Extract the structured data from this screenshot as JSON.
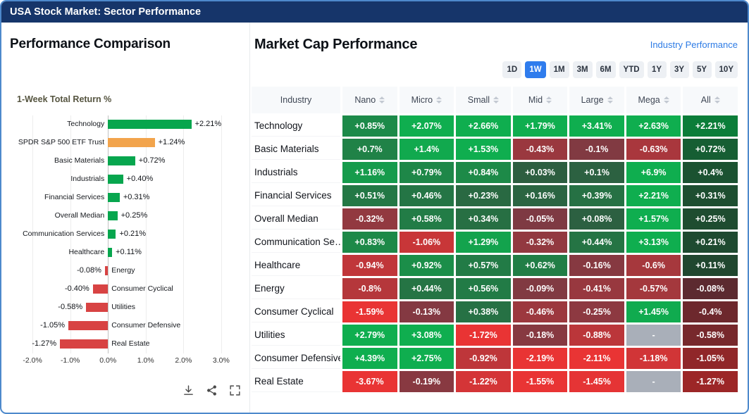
{
  "app": {
    "title": "USA Stock Market: Sector Performance"
  },
  "left_panel": {
    "title": "Performance Comparison",
    "toolbar_icons": [
      "download-icon",
      "share-icon",
      "fullscreen-icon"
    ]
  },
  "chart_data": {
    "type": "bar",
    "orientation": "horizontal",
    "title": "1-Week Total Return %",
    "categories": [
      "Technology",
      "SPDR S&P 500 ETF Trust",
      "Basic Materials",
      "Industrials",
      "Financial Services",
      "Overall Median",
      "Communication Services",
      "Healthcare",
      "Energy",
      "Consumer Cyclical",
      "Utilities",
      "Consumer Defensive",
      "Real Estate"
    ],
    "values": [
      2.21,
      1.24,
      0.72,
      0.4,
      0.31,
      0.25,
      0.21,
      0.11,
      -0.08,
      -0.4,
      -0.58,
      -1.05,
      -1.27
    ],
    "labels": [
      "+2.21%",
      "+1.24%",
      "+0.72%",
      "+0.40%",
      "+0.31%",
      "+0.25%",
      "+0.21%",
      "+0.11%",
      "-0.08%",
      "-0.40%",
      "-0.58%",
      "-1.05%",
      "-1.27%"
    ],
    "bar_colors": [
      "#07a64e",
      "#f2a44c",
      "#07a64e",
      "#07a64e",
      "#07a64e",
      "#07a64e",
      "#07a64e",
      "#07a64e",
      "#d84343",
      "#d84343",
      "#d84343",
      "#d84343",
      "#d84343"
    ],
    "xlim": [
      -2.0,
      3.0
    ],
    "x_ticks": [
      {
        "v": -2.0,
        "label": "-2.0%"
      },
      {
        "v": -1.0,
        "label": "-1.0%"
      },
      {
        "v": 0.0,
        "label": "0.0%"
      },
      {
        "v": 1.0,
        "label": "1.0%"
      },
      {
        "v": 2.0,
        "label": "2.0%"
      },
      {
        "v": 3.0,
        "label": "3.0%"
      }
    ],
    "grid": true,
    "legend": false
  },
  "right_panel": {
    "title": "Market Cap Performance",
    "link_label": "Industry Performance",
    "periods": [
      "1D",
      "1W",
      "1M",
      "3M",
      "6M",
      "YTD",
      "1Y",
      "3Y",
      "5Y",
      "10Y"
    ],
    "active_period": "1W",
    "table": {
      "columns": [
        "Industry",
        "Nano",
        "Micro",
        "Small",
        "Mid",
        "Large",
        "Mega",
        "All"
      ],
      "heatmap_colors": {
        "positive_strong": "#0fae4f",
        "positive_weak": "#2e5c40",
        "negative_strong": "#e93434",
        "negative_weak": "#7a3a43",
        "na": "#a9afb9",
        "all_column_darken": 0.72
      },
      "rows": [
        {
          "industry": "Technology",
          "values": [
            "+0.85%",
            "+2.07%",
            "+2.66%",
            "+1.79%",
            "+3.41%",
            "+2.63%",
            "+2.21%"
          ]
        },
        {
          "industry": "Basic Materials",
          "values": [
            "+0.7%",
            "+1.4%",
            "+1.53%",
            "-0.43%",
            "-0.1%",
            "-0.63%",
            "+0.72%"
          ]
        },
        {
          "industry": "Industrials",
          "values": [
            "+1.16%",
            "+0.79%",
            "+0.84%",
            "+0.03%",
            "+0.1%",
            "+6.9%",
            "+0.4%"
          ]
        },
        {
          "industry": "Financial Services",
          "values": [
            "+0.51%",
            "+0.46%",
            "+0.23%",
            "+0.16%",
            "+0.39%",
            "+2.21%",
            "+0.31%"
          ]
        },
        {
          "industry": "Overall Median",
          "values": [
            "-0.32%",
            "+0.58%",
            "+0.34%",
            "-0.05%",
            "+0.08%",
            "+1.57%",
            "+0.25%"
          ]
        },
        {
          "industry": "Communication Se…",
          "values": [
            "+0.83%",
            "-1.06%",
            "+1.29%",
            "-0.32%",
            "+0.44%",
            "+3.13%",
            "+0.21%"
          ]
        },
        {
          "industry": "Healthcare",
          "values": [
            "-0.94%",
            "+0.92%",
            "+0.57%",
            "+0.62%",
            "-0.16%",
            "-0.6%",
            "+0.11%"
          ]
        },
        {
          "industry": "Energy",
          "values": [
            "-0.8%",
            "+0.44%",
            "+0.56%",
            "-0.09%",
            "-0.41%",
            "-0.57%",
            "-0.08%"
          ]
        },
        {
          "industry": "Consumer Cyclical",
          "values": [
            "-1.59%",
            "-0.13%",
            "+0.38%",
            "-0.46%",
            "-0.25%",
            "+1.45%",
            "-0.4%"
          ]
        },
        {
          "industry": "Utilities",
          "values": [
            "+2.79%",
            "+3.08%",
            "-1.72%",
            "-0.18%",
            "-0.88%",
            "-",
            "-0.58%"
          ]
        },
        {
          "industry": "Consumer Defensive",
          "values": [
            "+4.39%",
            "+2.75%",
            "-0.92%",
            "-2.19%",
            "-2.11%",
            "-1.18%",
            "-1.05%"
          ]
        },
        {
          "industry": "Real Estate",
          "values": [
            "-3.67%",
            "-0.19%",
            "-1.22%",
            "-1.55%",
            "-1.45%",
            "-",
            "-1.27%"
          ]
        }
      ]
    }
  }
}
